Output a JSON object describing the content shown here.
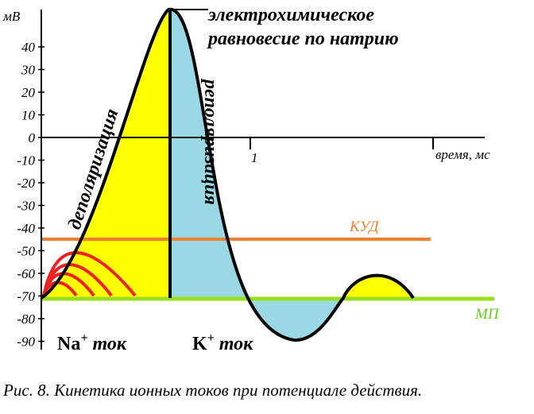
{
  "y_axis": {
    "unit": "мВ",
    "ticks": [
      "40",
      "30",
      "20",
      "10",
      "0",
      "-10",
      "-20",
      "-30",
      "-40",
      "-50",
      "-60",
      "-70",
      "-80",
      "-90"
    ]
  },
  "x_axis": {
    "tick": "1",
    "label": "время, мс"
  },
  "annotations": {
    "peak_line1": "электрохимическое",
    "peak_line2": "равновесие по натрию",
    "depolarization": "деполяризация",
    "repolarization": "реполяризация"
  },
  "lines": {
    "threshold": "КУД",
    "resting": "МП"
  },
  "currents": {
    "sodium": {
      "ion": "Na",
      "charge": "+",
      "word": "ток"
    },
    "potassium": {
      "ion": "K",
      "charge": "+",
      "word": "ток"
    }
  },
  "caption": "Рис. 8. Кинетика ионных токов при потенциале действия."
}
